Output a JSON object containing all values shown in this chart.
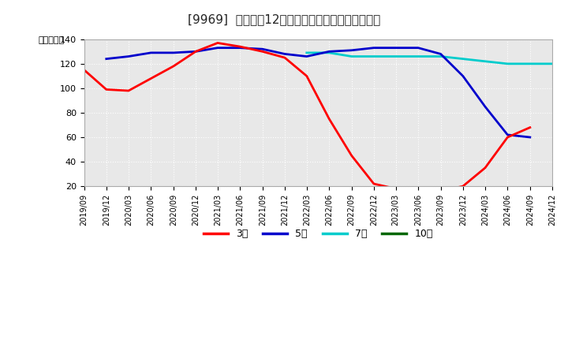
{
  "title": "[9969]  経常利益12か月移動合計の標準偏差の推移",
  "ylabel": "（百万円）",
  "ylim": [
    20,
    140
  ],
  "yticks": [
    20,
    40,
    60,
    80,
    100,
    120,
    140
  ],
  "background_color": "#ffffff",
  "plot_bg_color": "#e8e8e8",
  "grid_color": "#ffffff",
  "series": {
    "3年": {
      "color": "#ff0000",
      "points": [
        [
          "2019-09",
          115
        ],
        [
          "2019-12",
          99
        ],
        [
          "2020-03",
          98
        ],
        [
          "2020-06",
          108
        ],
        [
          "2020-09",
          118
        ],
        [
          "2020-12",
          130
        ],
        [
          "2021-03",
          137
        ],
        [
          "2021-06",
          134
        ],
        [
          "2021-09",
          130
        ],
        [
          "2021-12",
          125
        ],
        [
          "2022-03",
          110
        ],
        [
          "2022-06",
          75
        ],
        [
          "2022-09",
          45
        ],
        [
          "2022-12",
          22
        ],
        [
          "2023-03",
          18
        ],
        [
          "2023-06",
          17
        ],
        [
          "2023-09",
          16
        ],
        [
          "2023-12",
          20
        ],
        [
          "2024-03",
          35
        ],
        [
          "2024-06",
          60
        ],
        [
          "2024-09",
          68
        ],
        [
          "2024-12",
          null
        ]
      ]
    },
    "5年": {
      "color": "#0000cc",
      "points": [
        [
          "2019-09",
          null
        ],
        [
          "2019-12",
          124
        ],
        [
          "2020-03",
          126
        ],
        [
          "2020-06",
          129
        ],
        [
          "2020-09",
          129
        ],
        [
          "2020-12",
          130
        ],
        [
          "2021-03",
          133
        ],
        [
          "2021-06",
          133
        ],
        [
          "2021-09",
          132
        ],
        [
          "2021-12",
          128
        ],
        [
          "2022-03",
          126
        ],
        [
          "2022-06",
          130
        ],
        [
          "2022-09",
          131
        ],
        [
          "2022-12",
          133
        ],
        [
          "2023-03",
          133
        ],
        [
          "2023-06",
          133
        ],
        [
          "2023-09",
          128
        ],
        [
          "2023-12",
          110
        ],
        [
          "2024-03",
          85
        ],
        [
          "2024-06",
          62
        ],
        [
          "2024-09",
          60
        ],
        [
          "2024-12",
          null
        ]
      ]
    },
    "7年": {
      "color": "#00cccc",
      "points": [
        [
          "2019-09",
          null
        ],
        [
          "2019-12",
          null
        ],
        [
          "2020-03",
          null
        ],
        [
          "2020-06",
          null
        ],
        [
          "2020-09",
          null
        ],
        [
          "2020-12",
          null
        ],
        [
          "2021-03",
          null
        ],
        [
          "2021-06",
          null
        ],
        [
          "2021-09",
          null
        ],
        [
          "2021-12",
          null
        ],
        [
          "2022-03",
          129
        ],
        [
          "2022-06",
          129
        ],
        [
          "2022-09",
          126
        ],
        [
          "2022-12",
          126
        ],
        [
          "2023-03",
          126
        ],
        [
          "2023-06",
          126
        ],
        [
          "2023-09",
          126
        ],
        [
          "2023-12",
          124
        ],
        [
          "2024-03",
          122
        ],
        [
          "2024-06",
          120
        ],
        [
          "2024-09",
          120
        ],
        [
          "2024-12",
          120
        ]
      ]
    },
    "10年": {
      "color": "#006600",
      "points": [
        [
          "2019-09",
          null
        ],
        [
          "2019-12",
          null
        ],
        [
          "2020-03",
          null
        ],
        [
          "2020-06",
          null
        ],
        [
          "2020-09",
          null
        ],
        [
          "2020-12",
          null
        ],
        [
          "2021-03",
          null
        ],
        [
          "2021-06",
          null
        ],
        [
          "2021-09",
          null
        ],
        [
          "2021-12",
          null
        ],
        [
          "2022-03",
          null
        ],
        [
          "2022-06",
          null
        ],
        [
          "2022-09",
          null
        ],
        [
          "2022-12",
          null
        ],
        [
          "2023-03",
          null
        ],
        [
          "2023-06",
          null
        ],
        [
          "2023-09",
          null
        ],
        [
          "2023-12",
          null
        ],
        [
          "2024-03",
          null
        ],
        [
          "2024-06",
          null
        ],
        [
          "2024-09",
          null
        ],
        [
          "2024-12",
          null
        ]
      ]
    }
  },
  "xtick_labels": [
    "2019/09",
    "2019/12",
    "2020/03",
    "2020/06",
    "2020/09",
    "2020/12",
    "2021/03",
    "2021/06",
    "2021/09",
    "2021/12",
    "2022/03",
    "2022/06",
    "2022/09",
    "2022/12",
    "2023/03",
    "2023/06",
    "2023/09",
    "2023/12",
    "2024/03",
    "2024/06",
    "2024/09",
    "2024/12"
  ],
  "legend_entries": [
    "3年",
    "5年",
    "7年",
    "10年"
  ],
  "legend_colors": [
    "#ff0000",
    "#0000cc",
    "#00cccc",
    "#006600"
  ]
}
